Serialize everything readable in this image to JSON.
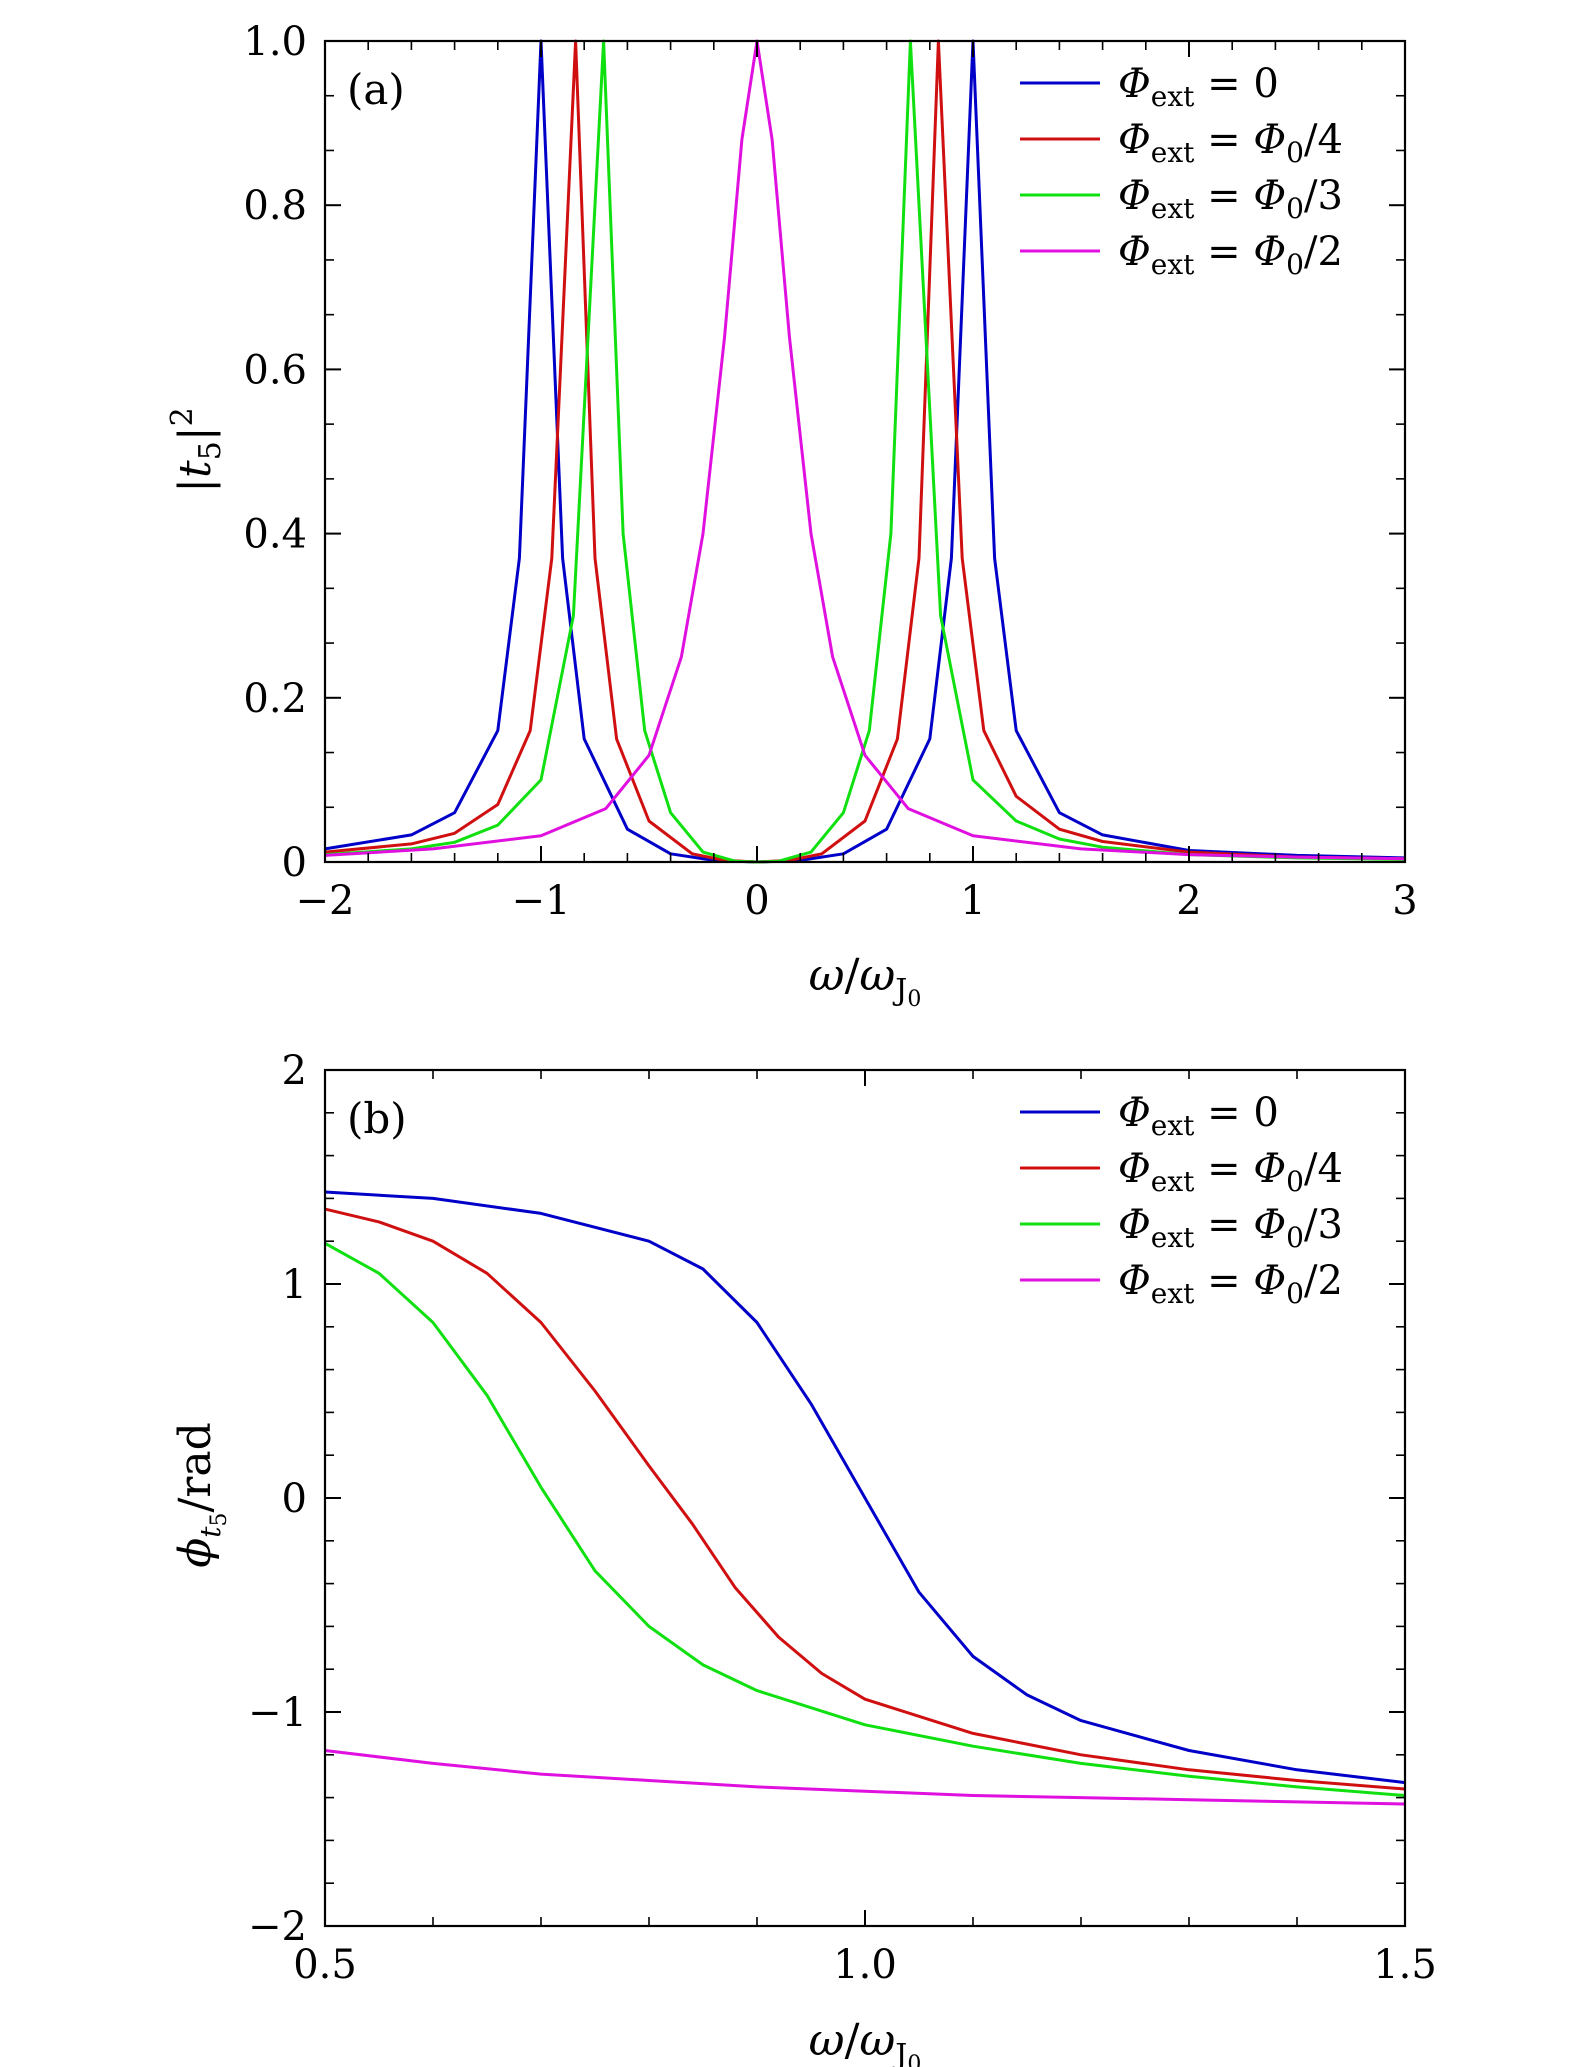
{
  "chart_data": [
    {
      "type": "line",
      "panel_label": "(a)",
      "xlabel": "ω/ω_J0",
      "ylabel": "|t5|²",
      "xlim": [
        -2,
        3
      ],
      "ylim": [
        0,
        1
      ],
      "x_ticks": [
        -2,
        -1,
        0,
        1,
        2,
        3
      ],
      "x_tick_labels": [
        "−2",
        "−1",
        "0",
        "1",
        "2",
        "3"
      ],
      "y_ticks": [
        0,
        0.2,
        0.4,
        0.6,
        0.8,
        1.0
      ],
      "y_tick_labels": [
        "0",
        "0.2",
        "0.4",
        "0.6",
        "0.8",
        "1.0"
      ],
      "legend_position": "top-right",
      "series": [
        {
          "name": "Φext = 0",
          "legend_suffix": "0",
          "color": "#0000c8",
          "points": [
            [
              -2,
              0.016
            ],
            [
              -1.6,
              0.033
            ],
            [
              -1.4,
              0.06
            ],
            [
              -1.2,
              0.16
            ],
            [
              -1.1,
              0.37
            ],
            [
              -1.0,
              1.0
            ],
            [
              -0.9,
              0.37
            ],
            [
              -0.8,
              0.15
            ],
            [
              -0.6,
              0.04
            ],
            [
              -0.4,
              0.01
            ],
            [
              -0.2,
              0.002
            ],
            [
              0,
              0
            ],
            [
              0.2,
              0.002
            ],
            [
              0.4,
              0.01
            ],
            [
              0.6,
              0.04
            ],
            [
              0.8,
              0.15
            ],
            [
              0.9,
              0.37
            ],
            [
              1.0,
              1.0
            ],
            [
              1.1,
              0.37
            ],
            [
              1.2,
              0.16
            ],
            [
              1.4,
              0.06
            ],
            [
              1.6,
              0.033
            ],
            [
              2,
              0.014
            ],
            [
              2.5,
              0.008
            ],
            [
              3,
              0.005
            ]
          ]
        },
        {
          "name": "Φext = Φ0/4",
          "legend_suffix": "Φ0/4",
          "color": "#d01010",
          "points": [
            [
              -2,
              0.012
            ],
            [
              -1.6,
              0.022
            ],
            [
              -1.4,
              0.035
            ],
            [
              -1.2,
              0.07
            ],
            [
              -1.05,
              0.16
            ],
            [
              -0.95,
              0.37
            ],
            [
              -0.84,
              1.0
            ],
            [
              -0.75,
              0.37
            ],
            [
              -0.65,
              0.15
            ],
            [
              -0.5,
              0.05
            ],
            [
              -0.3,
              0.01
            ],
            [
              -0.15,
              0.002
            ],
            [
              0,
              0
            ],
            [
              0.15,
              0.002
            ],
            [
              0.3,
              0.01
            ],
            [
              0.5,
              0.05
            ],
            [
              0.65,
              0.15
            ],
            [
              0.75,
              0.37
            ],
            [
              0.84,
              1.0
            ],
            [
              0.95,
              0.37
            ],
            [
              1.05,
              0.16
            ],
            [
              1.2,
              0.08
            ],
            [
              1.4,
              0.04
            ],
            [
              1.6,
              0.025
            ],
            [
              2,
              0.012
            ],
            [
              2.5,
              0.006
            ],
            [
              3,
              0.004
            ]
          ]
        },
        {
          "name": "Φext = Φ0/3",
          "legend_suffix": "Φ0/3",
          "color": "#10e010",
          "points": [
            [
              -2,
              0.009
            ],
            [
              -1.6,
              0.016
            ],
            [
              -1.4,
              0.024
            ],
            [
              -1.2,
              0.045
            ],
            [
              -1.0,
              0.1
            ],
            [
              -0.85,
              0.3
            ],
            [
              -0.71,
              1.0
            ],
            [
              -0.62,
              0.4
            ],
            [
              -0.52,
              0.16
            ],
            [
              -0.4,
              0.06
            ],
            [
              -0.25,
              0.012
            ],
            [
              -0.1,
              0.001
            ],
            [
              0,
              0
            ],
            [
              0.1,
              0.001
            ],
            [
              0.25,
              0.012
            ],
            [
              0.4,
              0.06
            ],
            [
              0.52,
              0.16
            ],
            [
              0.62,
              0.4
            ],
            [
              0.71,
              1.0
            ],
            [
              0.85,
              0.3
            ],
            [
              1.0,
              0.1
            ],
            [
              1.2,
              0.05
            ],
            [
              1.4,
              0.028
            ],
            [
              1.6,
              0.018
            ],
            [
              2,
              0.009
            ],
            [
              2.5,
              0.005
            ],
            [
              3,
              0.003
            ]
          ]
        },
        {
          "name": "Φext = Φ0/2",
          "legend_suffix": "Φ0/2",
          "color": "#e010e0",
          "points": [
            [
              -2,
              0.008
            ],
            [
              -1.5,
              0.016
            ],
            [
              -1.0,
              0.032
            ],
            [
              -0.7,
              0.065
            ],
            [
              -0.5,
              0.13
            ],
            [
              -0.35,
              0.25
            ],
            [
              -0.25,
              0.4
            ],
            [
              -0.15,
              0.64
            ],
            [
              -0.07,
              0.88
            ],
            [
              0,
              1.0
            ],
            [
              0.07,
              0.88
            ],
            [
              0.15,
              0.64
            ],
            [
              0.25,
              0.4
            ],
            [
              0.35,
              0.25
            ],
            [
              0.5,
              0.13
            ],
            [
              0.7,
              0.065
            ],
            [
              1.0,
              0.032
            ],
            [
              1.5,
              0.016
            ],
            [
              2,
              0.009
            ],
            [
              2.5,
              0.006
            ],
            [
              3,
              0.004
            ]
          ]
        }
      ]
    },
    {
      "type": "line",
      "panel_label": "(b)",
      "xlabel": "ω/ω_J0",
      "ylabel": "φ_t5/rad",
      "xlim": [
        0.5,
        1.5
      ],
      "ylim": [
        -2,
        2
      ],
      "x_ticks": [
        0.5,
        1.0,
        1.5
      ],
      "x_tick_labels": [
        "0.5",
        "1.0",
        "1.5"
      ],
      "y_ticks": [
        -2,
        -1,
        0,
        1,
        2
      ],
      "y_tick_labels": [
        "−2",
        "−1",
        "0",
        "1",
        "2"
      ],
      "legend_position": "top-right",
      "series": [
        {
          "name": "Φext = 0",
          "legend_suffix": "0",
          "color": "#0000c8",
          "points": [
            [
              0.5,
              1.43
            ],
            [
              0.6,
              1.4
            ],
            [
              0.7,
              1.33
            ],
            [
              0.8,
              1.2
            ],
            [
              0.85,
              1.07
            ],
            [
              0.9,
              0.82
            ],
            [
              0.95,
              0.44
            ],
            [
              1.0,
              0.0
            ],
            [
              1.05,
              -0.44
            ],
            [
              1.1,
              -0.74
            ],
            [
              1.15,
              -0.92
            ],
            [
              1.2,
              -1.04
            ],
            [
              1.3,
              -1.18
            ],
            [
              1.4,
              -1.27
            ],
            [
              1.5,
              -1.33
            ]
          ]
        },
        {
          "name": "Φext = Φ0/4",
          "legend_suffix": "Φ0/4",
          "color": "#d01010",
          "points": [
            [
              0.5,
              1.35
            ],
            [
              0.55,
              1.29
            ],
            [
              0.6,
              1.2
            ],
            [
              0.65,
              1.05
            ],
            [
              0.7,
              0.82
            ],
            [
              0.75,
              0.5
            ],
            [
              0.8,
              0.15
            ],
            [
              0.84,
              -0.12
            ],
            [
              0.88,
              -0.42
            ],
            [
              0.92,
              -0.65
            ],
            [
              0.96,
              -0.82
            ],
            [
              1.0,
              -0.94
            ],
            [
              1.1,
              -1.1
            ],
            [
              1.2,
              -1.2
            ],
            [
              1.3,
              -1.27
            ],
            [
              1.4,
              -1.32
            ],
            [
              1.5,
              -1.36
            ]
          ]
        },
        {
          "name": "Φext = Φ0/3",
          "legend_suffix": "Φ0/3",
          "color": "#10e010",
          "points": [
            [
              0.5,
              1.19
            ],
            [
              0.55,
              1.05
            ],
            [
              0.6,
              0.82
            ],
            [
              0.65,
              0.48
            ],
            [
              0.7,
              0.05
            ],
            [
              0.75,
              -0.34
            ],
            [
              0.8,
              -0.6
            ],
            [
              0.85,
              -0.78
            ],
            [
              0.9,
              -0.9
            ],
            [
              1.0,
              -1.06
            ],
            [
              1.1,
              -1.16
            ],
            [
              1.2,
              -1.24
            ],
            [
              1.3,
              -1.3
            ],
            [
              1.4,
              -1.35
            ],
            [
              1.5,
              -1.39
            ]
          ]
        },
        {
          "name": "Φext = Φ0/2",
          "legend_suffix": "Φ0/2",
          "color": "#e010e0",
          "points": [
            [
              0.5,
              -1.18
            ],
            [
              0.6,
              -1.24
            ],
            [
              0.7,
              -1.29
            ],
            [
              0.8,
              -1.32
            ],
            [
              0.9,
              -1.35
            ],
            [
              1.0,
              -1.37
            ],
            [
              1.1,
              -1.39
            ],
            [
              1.2,
              -1.4
            ],
            [
              1.3,
              -1.41
            ],
            [
              1.4,
              -1.42
            ],
            [
              1.5,
              -1.43
            ]
          ]
        }
      ]
    }
  ]
}
